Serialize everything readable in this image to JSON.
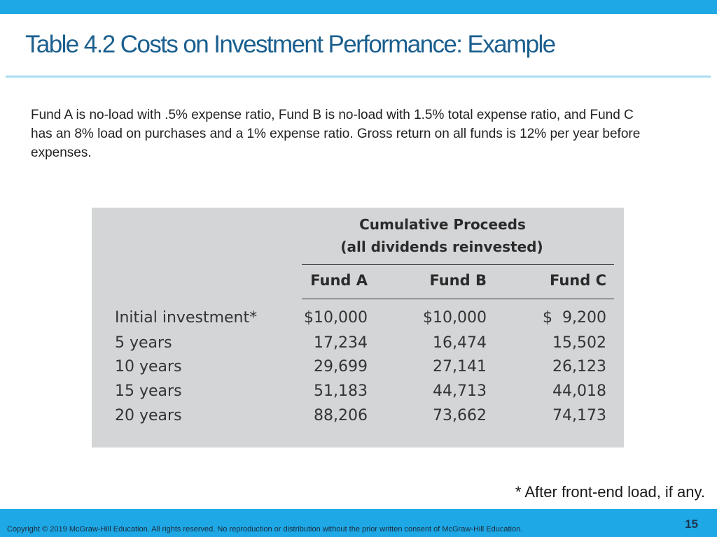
{
  "slide": {
    "title": "Table 4.2 Costs on Investment Performance: Example",
    "intro": "Fund A is no-load with .5% expense ratio, Fund B is no-load with 1.5% total expense ratio, and Fund C has an 8% load on purchases and a 1% expense ratio. Gross return on all funds is 12% per year before expenses.",
    "footnote": "* After front-end load, if any.",
    "copyright": "Copyright © 2019 McGraw-Hill Education. All rights reserved. No reproduction or distribution without the prior written consent of McGraw-Hill Education.",
    "page_number": "15"
  },
  "table": {
    "title_line1": "Cumulative Proceeds",
    "title_line2": "(all dividends reinvested)",
    "columns": [
      "Fund A",
      "Fund B",
      "Fund C"
    ],
    "rows": [
      {
        "label": "Initial investment*",
        "values": [
          "$10,000",
          "$10,000",
          "$  9,200"
        ]
      },
      {
        "label": "5 years",
        "values": [
          "17,234",
          "16,474",
          "15,502"
        ]
      },
      {
        "label": "10 years",
        "values": [
          "29,699",
          "27,141",
          "26,123"
        ]
      },
      {
        "label": "15 years",
        "values": [
          "51,183",
          "44,713",
          "44,018"
        ]
      },
      {
        "label": "20 years",
        "values": [
          "88,206",
          "73,662",
          "74,173"
        ]
      }
    ]
  },
  "colors": {
    "accent_bar": "#1ea8e6",
    "title_text": "#1a5f8f",
    "table_background": "#d4d5d7"
  }
}
